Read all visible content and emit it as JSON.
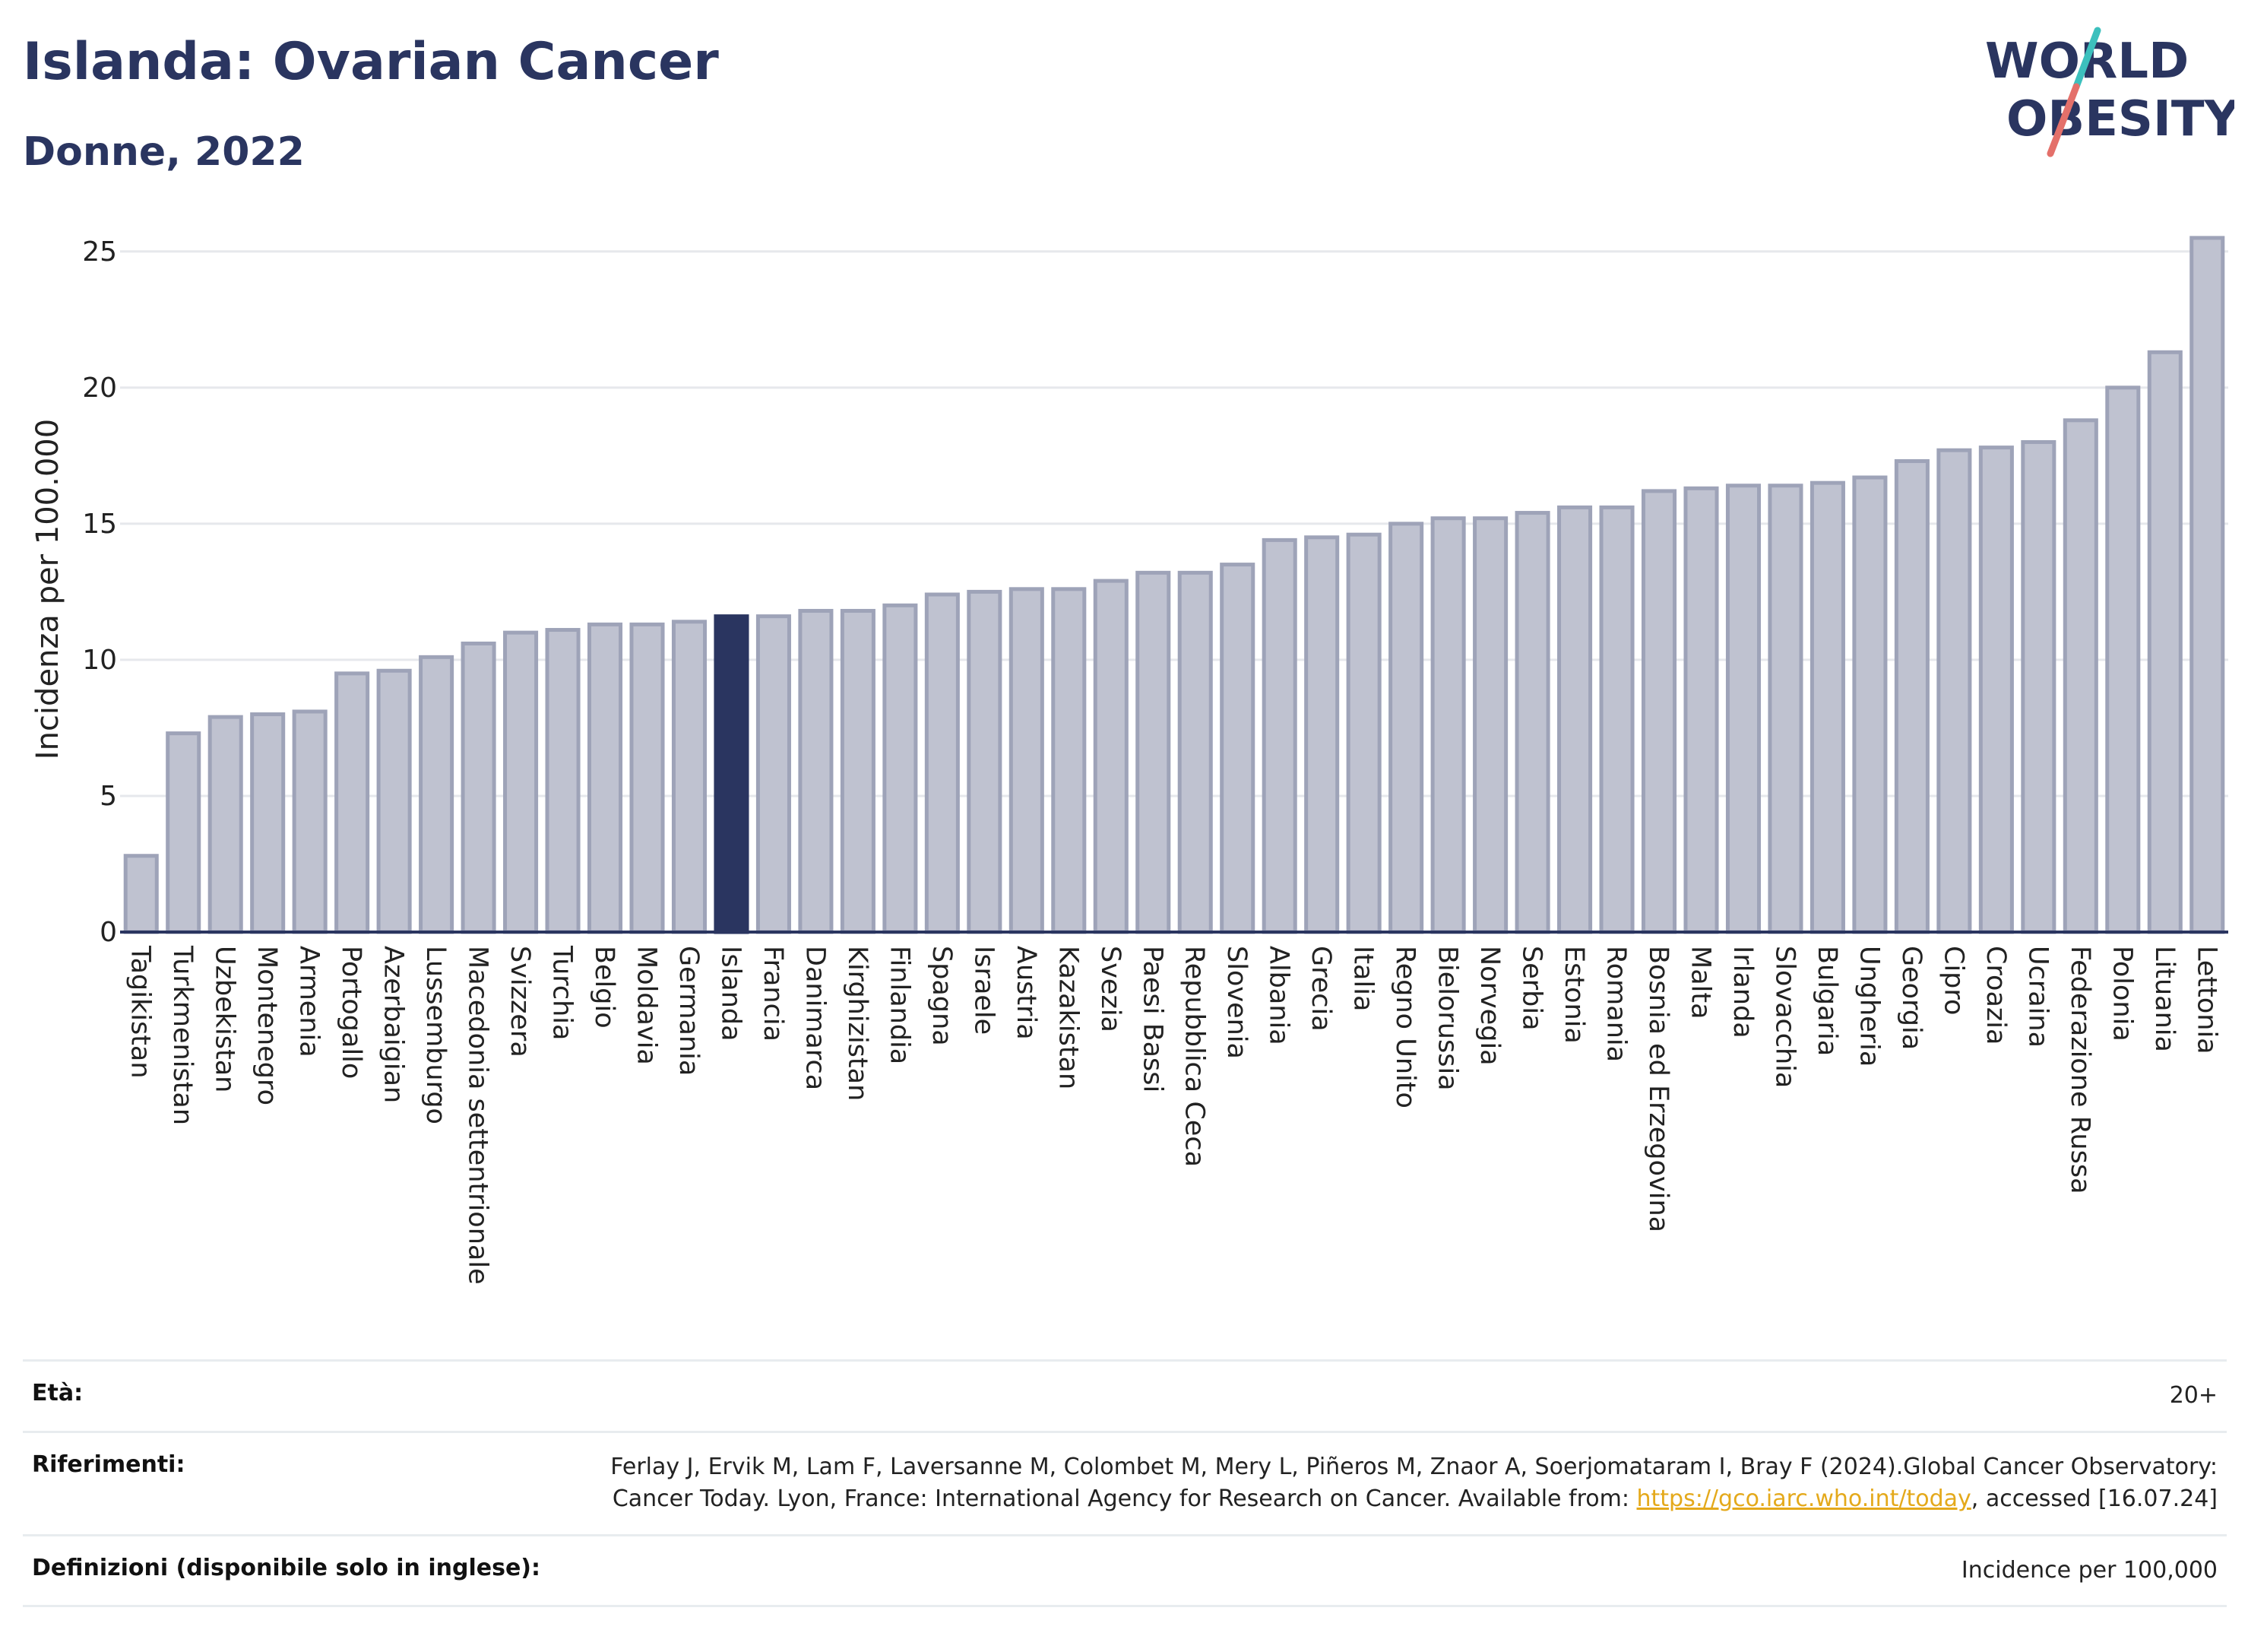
{
  "header": {
    "title": "Islanda: Ovarian Cancer",
    "subtitle": "Donne, 2022",
    "logo_line1": "WORLD",
    "logo_line2": "OBESITY"
  },
  "colors": {
    "title": "#2a3560",
    "bar_default": "#bfc2d0",
    "bar_default_stroke": "#9ea3b8",
    "bar_highlight": "#2a3560",
    "logo_text": "#2a3560",
    "logo_slash_top": "#3cc0bd",
    "logo_slash_bottom": "#e4706a",
    "link": "#e4a91b"
  },
  "chart_data": {
    "type": "bar",
    "ylabel": "Incidenza per 100.000",
    "ylim": [
      0,
      26
    ],
    "yticks": [
      0,
      5,
      10,
      15,
      20,
      25
    ],
    "grid": true,
    "highlight": "Islanda",
    "categories": [
      "Tagikistan",
      "Turkmenistan",
      "Uzbekistan",
      "Montenegro",
      "Armenia",
      "Portogallo",
      "Azerbaigian",
      "Lussemburgo",
      "Macedonia settentrionale",
      "Svizzera",
      "Turchia",
      "Belgio",
      "Moldavia",
      "Germania",
      "Islanda",
      "Francia",
      "Danimarca",
      "Kirghizistan",
      "Finlandia",
      "Spagna",
      "Israele",
      "Austria",
      "Kazakistan",
      "Svezia",
      "Paesi Bassi",
      "Repubblica Ceca",
      "Slovenia",
      "Albania",
      "Grecia",
      "Italia",
      "Regno Unito",
      "Bielorussia",
      "Norvegia",
      "Serbia",
      "Estonia",
      "Romania",
      "Bosnia ed Erzegovina",
      "Malta",
      "Irlanda",
      "Slovacchia",
      "Bulgaria",
      "Ungheria",
      "Georgia",
      "Cipro",
      "Croazia",
      "Ucraina",
      "Federazione Russa",
      "Polonia",
      "Lituania",
      "Lettonia"
    ],
    "values": [
      2.8,
      7.3,
      7.9,
      8.0,
      8.1,
      9.5,
      9.6,
      10.1,
      10.6,
      11.0,
      11.1,
      11.3,
      11.3,
      11.4,
      11.6,
      11.6,
      11.8,
      11.8,
      12.0,
      12.4,
      12.5,
      12.6,
      12.6,
      12.9,
      13.2,
      13.2,
      13.5,
      14.4,
      14.5,
      14.6,
      15.0,
      15.2,
      15.2,
      15.4,
      15.6,
      15.6,
      16.2,
      16.3,
      16.4,
      16.4,
      16.5,
      16.7,
      17.3,
      17.7,
      17.8,
      18.0,
      18.8,
      20.0,
      21.3,
      25.5
    ]
  },
  "meta": {
    "age_label": "Età:",
    "age_value": "20+",
    "refs_label": "Riferimenti:",
    "refs_text_before": "Ferlay J, Ervik M, Lam F, Laversanne M, Colombet M, Mery L, Piñeros M, Znaor A, Soerjomataram I, Bray F (2024).Global Cancer Observatory: Cancer Today. Lyon, France: International Agency for Research on Cancer. Available from: ",
    "refs_link": "https://gco.iarc.who.int/today",
    "refs_text_after": ", accessed [16.07.24]",
    "definitions_label": "Definizioni (disponibile solo in inglese):",
    "definitions_value": "Incidence per 100,000"
  }
}
